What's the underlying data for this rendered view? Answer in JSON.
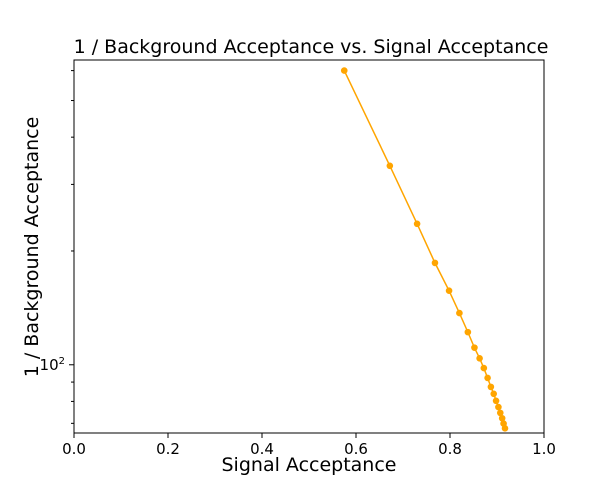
{
  "chart_data": {
    "type": "line",
    "title": "1 / Background Acceptance vs. Signal Acceptance",
    "xlabel": "Signal Acceptance",
    "ylabel": "1 / Background Acceptance",
    "xlim": [
      0.0,
      1.0
    ],
    "ylim": [
      66,
      640
    ],
    "yscale": "log",
    "grid": false,
    "x_ticks": [
      "0.0",
      "0.2",
      "0.4",
      "0.6",
      "0.8",
      "1.0"
    ],
    "y_ticks": [
      {
        "value": 100,
        "base": "10",
        "exponent": "2"
      }
    ],
    "series": [
      {
        "color": "#ffa500",
        "x": [
          0.575,
          0.672,
          0.73,
          0.768,
          0.798,
          0.82,
          0.838,
          0.852,
          0.863,
          0.872,
          0.88,
          0.887,
          0.893,
          0.898,
          0.903,
          0.907,
          0.911,
          0.914,
          0.917
        ],
        "y": [
          600,
          336,
          236,
          186,
          157,
          137,
          122,
          111,
          104,
          98,
          92.3,
          87.4,
          83.8,
          80.3,
          77.3,
          74.6,
          72.2,
          69.9,
          67.9
        ]
      }
    ]
  }
}
